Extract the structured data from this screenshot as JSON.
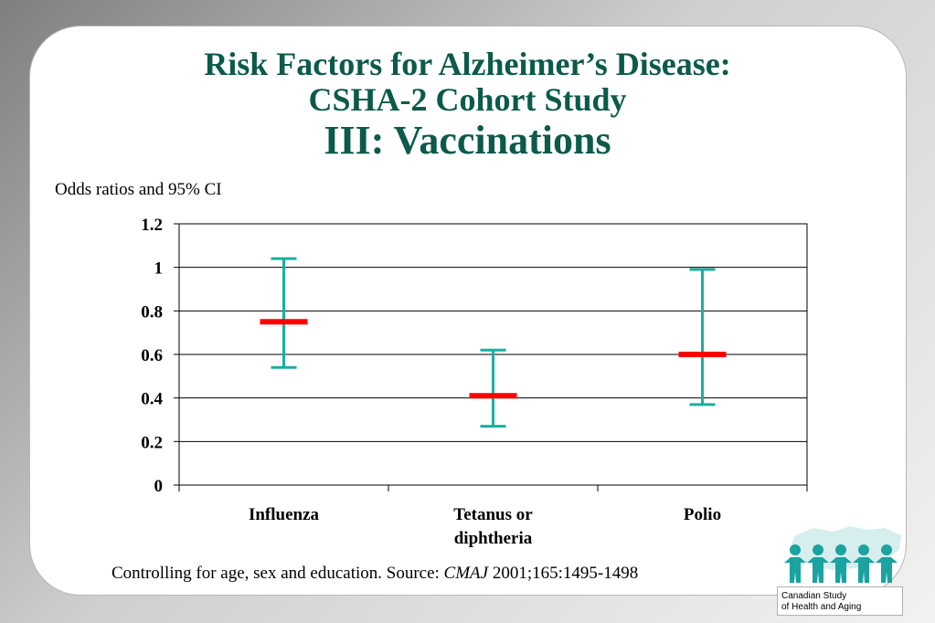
{
  "title": {
    "line1": "Risk Factors for Alzheimer’s Disease:",
    "line2": "CSHA-2 Cohort Study",
    "line3": "III:  Vaccinations"
  },
  "y_axis_caption": "Odds ratios and 95% CI",
  "footnote": {
    "text_before": "Controlling for age, sex and education.  Source: ",
    "journal": "CMAJ",
    "text_after": " 2001;165:1495-1498"
  },
  "logo": {
    "line1": "Canadian Study",
    "line2": "of Health and Aging"
  },
  "colors": {
    "title": "#0b5a4a",
    "point": "#ff0000",
    "ci": "#1aaf9f",
    "logo": "#1aa3a0"
  },
  "chart_data": {
    "type": "scatter",
    "subtype": "odds-ratio-with-confidence-intervals",
    "categories": [
      [
        "Influenza"
      ],
      [
        "Tetanus or",
        "diphtheria"
      ],
      [
        "Polio"
      ]
    ],
    "odds_ratio": [
      0.75,
      0.41,
      0.6
    ],
    "ci_lower": [
      0.54,
      0.27,
      0.37
    ],
    "ci_upper": [
      1.04,
      0.62,
      0.99
    ],
    "ylim": [
      0,
      1.2
    ],
    "yticks": [
      0,
      0.2,
      0.4,
      0.6,
      0.8,
      1.0,
      1.2
    ],
    "ytick_labels": [
      "0",
      "0.2",
      "0.4",
      "0.6",
      "0.8",
      "1",
      "1.2"
    ],
    "grid": true,
    "legend": "none"
  }
}
